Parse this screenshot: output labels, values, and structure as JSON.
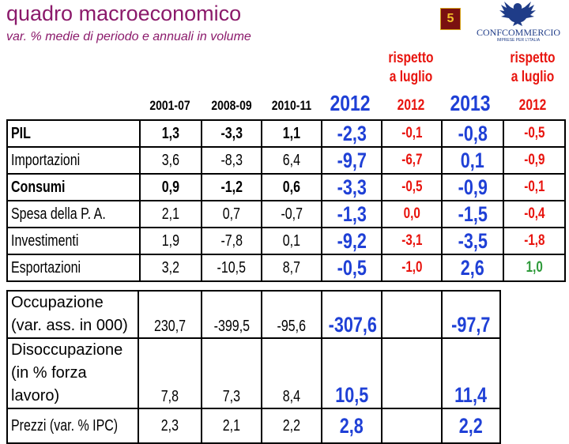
{
  "header": {
    "title": "quadro macroeconomico",
    "subtitle": "var. % medie di periodo e annuali in volume",
    "page_number": "5",
    "logo_name": "CONFCOMMERCIO",
    "logo_tagline": "IMPRESE PER L'ITALIA"
  },
  "columns": {
    "p1": "2001-07",
    "p2": "2008-09",
    "p3": "2010-11",
    "y2012": "2012",
    "rispetto1_line1": "rispetto",
    "rispetto1_line2": "a luglio",
    "rispetto1_year": "2012",
    "y2013": "2013",
    "rispetto2_line1": "rispetto",
    "rispetto2_line2": "a luglio",
    "rispetto2_year": "2012"
  },
  "rows_top": [
    {
      "label": "PIL",
      "p1": "1,3",
      "p2": "-3,3",
      "p3": "1,1",
      "y2012": "-2,3",
      "d2012": "-0,1",
      "y2013": "-0,8",
      "d2013": "-0,5"
    },
    {
      "label": "Importazioni",
      "p1": "3,6",
      "p2": "-8,3",
      "p3": "6,4",
      "y2012": "-9,7",
      "d2012": "-6,7",
      "y2013": "0,1",
      "d2013": "-0,9"
    },
    {
      "label": "Consumi",
      "p1": "0,9",
      "p2": "-1,2",
      "p3": "0,6",
      "y2012": "-3,3",
      "d2012": "-0,5",
      "y2013": "-0,9",
      "d2013": "-0,1"
    },
    {
      "label": "Spesa della P. A.",
      "p1": "2,1",
      "p2": "0,7",
      "p3": "-0,7",
      "y2012": "-1,3",
      "d2012": "0,0",
      "y2013": "-1,5",
      "d2013": "-0,4"
    },
    {
      "label": "Investimenti",
      "p1": "1,9",
      "p2": "-7,8",
      "p3": "0,1",
      "y2012": "-9,2",
      "d2012": "-3,1",
      "y2013": "-3,5",
      "d2013": "-1,8"
    },
    {
      "label": "Esportazioni",
      "p1": "3,2",
      "p2": "-10,5",
      "p3": "8,7",
      "y2012": "-0,5",
      "d2012": "-1,0",
      "y2013": "2,6",
      "d2013": "1,0"
    }
  ],
  "rows_bottom": [
    {
      "label": "Occupazione (var. ass. in 000)",
      "p1": "230,7",
      "p2": "-399,5",
      "p3": "-95,6",
      "y2012": "-307,6",
      "d2012": "",
      "y2013": "-97,7"
    },
    {
      "label": "Disoccupazione (in % forza lavoro)",
      "p1": "7,8",
      "p2": "7,3",
      "p3": "8,4",
      "y2012": "10,5",
      "d2012": "",
      "y2013": "11,4"
    },
    {
      "label": "Prezzi (var. % IPC)",
      "p1": "2,3",
      "p2": "2,1",
      "p3": "2,2",
      "y2012": "2,8",
      "d2012": "",
      "y2013": "2,2"
    }
  ],
  "colors": {
    "title": "#8b1a6b",
    "year_blue": "#1f40d6",
    "delta_red": "#e8140e",
    "delta_green": "#2e9a3a",
    "badge_bg": "#7a1010",
    "logo_blue": "#1f3c88"
  },
  "icons": {
    "logo": "eagle-emblem-icon"
  }
}
